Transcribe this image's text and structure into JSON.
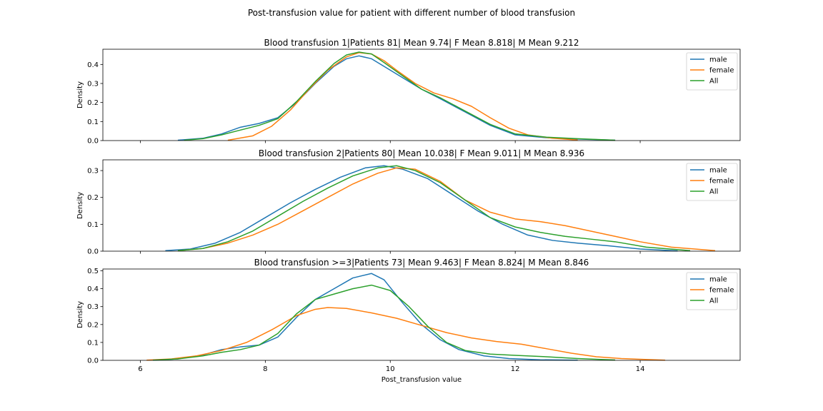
{
  "figure": {
    "suptitle": "Post-transfusion value for patient with different number of blood transfusion"
  },
  "chart_data": [
    {
      "type": "line",
      "title": "Blood transfusion 1|Patients 81| Mean 9.74| F Mean 8.818| M Mean 9.212",
      "xlabel": "",
      "ylabel": "Density",
      "xlim": [
        5.4,
        15.6
      ],
      "ylim": [
        0,
        0.48
      ],
      "yticks": [
        0.0,
        0.1,
        0.2,
        0.3,
        0.4
      ],
      "ytick_labels": [
        "0.0",
        "0.1",
        "0.2",
        "0.3",
        "0.4"
      ],
      "xticks": [
        6,
        8,
        10,
        12,
        14
      ],
      "xtick_labels": [],
      "legend": {
        "position": "top-right",
        "entries": [
          "male",
          "female",
          "All"
        ]
      },
      "series": [
        {
          "name": "male",
          "color": "#1f77b4",
          "x": [
            6.6,
            7.0,
            7.3,
            7.6,
            7.9,
            8.2,
            8.5,
            8.8,
            9.1,
            9.3,
            9.5,
            9.7,
            9.9,
            10.2,
            10.5,
            10.8,
            11.2,
            11.6,
            12.0,
            12.5,
            13.0,
            13.6
          ],
          "y": [
            0.002,
            0.012,
            0.035,
            0.07,
            0.09,
            0.12,
            0.2,
            0.3,
            0.39,
            0.43,
            0.445,
            0.43,
            0.39,
            0.33,
            0.27,
            0.22,
            0.15,
            0.08,
            0.03,
            0.015,
            0.008,
            0.002
          ]
        },
        {
          "name": "female",
          "color": "#ff7f0e",
          "x": [
            7.4,
            7.8,
            8.1,
            8.4,
            8.7,
            9.0,
            9.3,
            9.5,
            9.7,
            9.9,
            10.1,
            10.4,
            10.7,
            11.0,
            11.3,
            11.6,
            11.9,
            12.2,
            12.6,
            13.0
          ],
          "y": [
            0.002,
            0.025,
            0.075,
            0.16,
            0.27,
            0.37,
            0.44,
            0.462,
            0.455,
            0.42,
            0.37,
            0.3,
            0.25,
            0.22,
            0.18,
            0.12,
            0.065,
            0.03,
            0.012,
            0.003
          ]
        },
        {
          "name": "All",
          "color": "#2ca02c",
          "x": [
            6.7,
            7.0,
            7.3,
            7.6,
            7.9,
            8.2,
            8.5,
            8.8,
            9.1,
            9.3,
            9.5,
            9.7,
            9.9,
            10.2,
            10.5,
            10.8,
            11.2,
            11.6,
            12.0,
            12.5,
            13.0,
            13.6
          ],
          "y": [
            0.002,
            0.01,
            0.03,
            0.055,
            0.08,
            0.115,
            0.205,
            0.31,
            0.405,
            0.45,
            0.465,
            0.455,
            0.41,
            0.34,
            0.27,
            0.225,
            0.155,
            0.085,
            0.035,
            0.018,
            0.01,
            0.002
          ]
        }
      ]
    },
    {
      "type": "line",
      "title": "Blood transfusion 2|Patients 80| Mean 10.038| F Mean 9.011| M Mean 8.936",
      "xlabel": "",
      "ylabel": "Density",
      "xlim": [
        5.4,
        15.6
      ],
      "ylim": [
        0,
        0.34
      ],
      "yticks": [
        0.0,
        0.1,
        0.2,
        0.3
      ],
      "ytick_labels": [
        "0.0",
        "0.1",
        "0.2",
        "0.3"
      ],
      "xticks": [
        6,
        8,
        10,
        12,
        14
      ],
      "xtick_labels": [],
      "legend": {
        "position": "top-right",
        "entries": [
          "male",
          "female",
          "All"
        ]
      },
      "series": [
        {
          "name": "male",
          "color": "#1f77b4",
          "x": [
            6.4,
            6.8,
            7.2,
            7.6,
            8.0,
            8.4,
            8.8,
            9.2,
            9.6,
            9.9,
            10.2,
            10.6,
            11.0,
            11.4,
            11.8,
            12.2,
            12.6,
            13.0,
            13.5,
            14.0,
            14.6
          ],
          "y": [
            0.002,
            0.008,
            0.03,
            0.07,
            0.125,
            0.18,
            0.23,
            0.275,
            0.31,
            0.318,
            0.305,
            0.27,
            0.21,
            0.15,
            0.1,
            0.06,
            0.04,
            0.03,
            0.02,
            0.008,
            0.001
          ]
        },
        {
          "name": "female",
          "color": "#ff7f0e",
          "x": [
            6.6,
            7.0,
            7.4,
            7.8,
            8.2,
            8.6,
            9.0,
            9.4,
            9.8,
            10.1,
            10.4,
            10.8,
            11.2,
            11.6,
            12.0,
            12.4,
            12.8,
            13.2,
            13.6,
            14.0,
            14.5,
            15.2
          ],
          "y": [
            0.002,
            0.01,
            0.03,
            0.06,
            0.1,
            0.15,
            0.2,
            0.25,
            0.29,
            0.31,
            0.305,
            0.26,
            0.19,
            0.145,
            0.12,
            0.11,
            0.095,
            0.075,
            0.055,
            0.035,
            0.015,
            0.002
          ]
        },
        {
          "name": "All",
          "color": "#2ca02c",
          "x": [
            6.6,
            7.0,
            7.4,
            7.8,
            8.2,
            8.6,
            9.0,
            9.4,
            9.8,
            10.1,
            10.4,
            10.8,
            11.2,
            11.6,
            12.0,
            12.4,
            12.8,
            13.2,
            13.6,
            14.1,
            14.8
          ],
          "y": [
            0.002,
            0.01,
            0.035,
            0.075,
            0.13,
            0.185,
            0.235,
            0.28,
            0.31,
            0.318,
            0.3,
            0.255,
            0.19,
            0.125,
            0.09,
            0.07,
            0.055,
            0.045,
            0.035,
            0.015,
            0.002
          ]
        }
      ]
    },
    {
      "type": "line",
      "title": "Blood transfusion >=3|Patients 73| Mean 9.463| F Mean 8.824| M Mean 8.846",
      "xlabel": "Post_transfusion value",
      "ylabel": "Density",
      "xlim": [
        5.4,
        15.6
      ],
      "ylim": [
        0,
        0.51
      ],
      "yticks": [
        0.0,
        0.1,
        0.2,
        0.3,
        0.4,
        0.5
      ],
      "ytick_labels": [
        "0.0",
        "0.1",
        "0.2",
        "0.3",
        "0.4",
        "0.5"
      ],
      "xticks": [
        6,
        8,
        10,
        12,
        14
      ],
      "xtick_labels": [
        "6",
        "8",
        "10",
        "12",
        "14"
      ],
      "legend": {
        "position": "top-right",
        "entries": [
          "male",
          "female",
          "All"
        ]
      },
      "series": [
        {
          "name": "male",
          "color": "#1f77b4",
          "x": [
            6.2,
            6.6,
            7.0,
            7.3,
            7.6,
            7.9,
            8.2,
            8.5,
            8.8,
            9.1,
            9.4,
            9.7,
            9.9,
            10.2,
            10.5,
            10.8,
            11.1,
            11.5,
            11.9,
            12.4,
            13.0
          ],
          "y": [
            0.001,
            0.008,
            0.03,
            0.06,
            0.075,
            0.085,
            0.13,
            0.24,
            0.34,
            0.4,
            0.46,
            0.485,
            0.45,
            0.32,
            0.2,
            0.115,
            0.06,
            0.025,
            0.01,
            0.003,
            0.001
          ]
        },
        {
          "name": "female",
          "color": "#ff7f0e",
          "x": [
            6.1,
            6.5,
            6.9,
            7.3,
            7.7,
            8.1,
            8.5,
            8.8,
            9.0,
            9.3,
            9.7,
            10.1,
            10.5,
            10.9,
            11.3,
            11.7,
            12.1,
            12.5,
            12.9,
            13.3,
            13.7,
            14.4
          ],
          "y": [
            0.001,
            0.008,
            0.025,
            0.055,
            0.1,
            0.17,
            0.25,
            0.285,
            0.295,
            0.29,
            0.265,
            0.235,
            0.195,
            0.155,
            0.125,
            0.105,
            0.09,
            0.065,
            0.04,
            0.02,
            0.01,
            0.001
          ]
        },
        {
          "name": "All",
          "color": "#2ca02c",
          "x": [
            6.2,
            6.6,
            7.0,
            7.3,
            7.6,
            7.9,
            8.2,
            8.5,
            8.8,
            9.1,
            9.4,
            9.7,
            10.0,
            10.3,
            10.6,
            10.9,
            11.2,
            11.6,
            12.0,
            12.5,
            13.0,
            13.6
          ],
          "y": [
            0.001,
            0.008,
            0.025,
            0.045,
            0.06,
            0.085,
            0.15,
            0.26,
            0.34,
            0.37,
            0.4,
            0.42,
            0.39,
            0.3,
            0.19,
            0.1,
            0.055,
            0.035,
            0.028,
            0.02,
            0.01,
            0.002
          ]
        }
      ]
    }
  ]
}
